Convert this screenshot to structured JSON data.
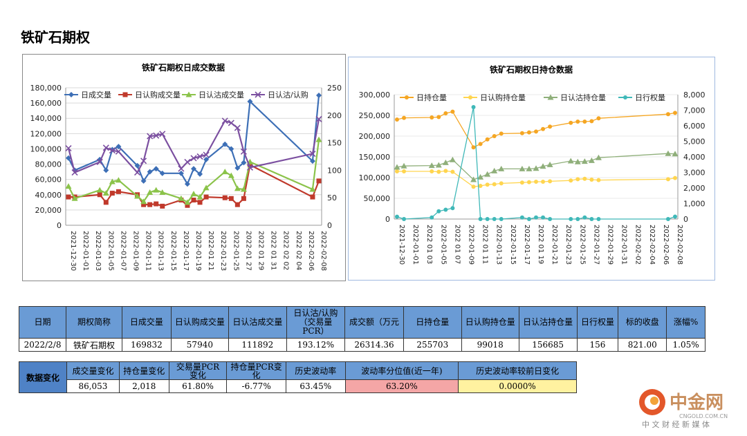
{
  "page": {
    "title": "铁矿石期权"
  },
  "chart_data": [
    {
      "type": "line",
      "title": "铁矿石期权日成交数据",
      "x": [
        "2021-12-30",
        "2022-01-01",
        "2022-01-03",
        "2022-01-05",
        "2022-01-07",
        "2022-01-09",
        "2022-01-11",
        "2022-01-13",
        "2022-01-15",
        "2022-01-17",
        "2022-01-19",
        "2022-01-21",
        "2022-01-23",
        "2022-01-25",
        "2022-01-27",
        "2022-01-29",
        "2022-01-31",
        "2022-02-02",
        "2022-02-04",
        "2022-02-06",
        "2022-02-08"
      ],
      "x_ticks_display": [
        "2021-12-30",
        "2022-01-01",
        "2022-01-03",
        "2022-01-05",
        "2022-01-07",
        "2022-01-09",
        "2022-01-11",
        "2022-01-13",
        "2022-01-15",
        "2022-01-17",
        "2022-01-19",
        "2022-01 21",
        "2022-01-23",
        "2022-01-25",
        "2022-01 27",
        "2022 01 29",
        "2022 01 31",
        "2022 02 02",
        "2022 02 04",
        "2022-02-06",
        "2022-02-08"
      ],
      "ylim_left": [
        0,
        180000
      ],
      "yticks_left": [
        "0",
        "20,000",
        "40,000",
        "60,000",
        "80,000",
        "100,000",
        "120,000",
        "140,000",
        "160,000",
        "180,000"
      ],
      "ylim_right": [
        0,
        250
      ],
      "yticks_right": [
        "0",
        "50",
        "100",
        "150",
        "200",
        "250"
      ],
      "series": [
        {
          "name": "日成交量",
          "axis": "left",
          "color": "#3d6fb6",
          "marker": "diamond",
          "points": [
            [
              "2021-12-30",
              88000
            ],
            [
              "2021-12-31",
              72000
            ],
            [
              "2022-01-04",
              86000
            ],
            [
              "2022-01-05",
              72000
            ],
            [
              "2022-01-06",
              99000
            ],
            [
              "2022-01-07",
              103000
            ],
            [
              "2022-01-10",
              78000
            ],
            [
              "2022-01-11",
              58000
            ],
            [
              "2022-01-12",
              70000
            ],
            [
              "2022-01-13",
              74000
            ],
            [
              "2022-01-14",
              68000
            ],
            [
              "2022-01-17",
              68000
            ],
            [
              "2022-01-18",
              54000
            ],
            [
              "2022-01-19",
              74000
            ],
            [
              "2022-01-20",
              67000
            ],
            [
              "2022-01-21",
              86000
            ],
            [
              "2022-01-24",
              106000
            ],
            [
              "2022-01-25",
              100000
            ],
            [
              "2022-01-26",
              75000
            ],
            [
              "2022-01-27",
              82000
            ],
            [
              "2022-01-28",
              162000
            ],
            [
              "2022-02-07",
              84000
            ],
            [
              "2022-02-08",
              170000
            ]
          ]
        },
        {
          "name": "日认购成交量",
          "axis": "left",
          "color": "#c0392b",
          "marker": "square",
          "points": [
            [
              "2021-12-30",
              37000
            ],
            [
              "2021-12-31",
              37000
            ],
            [
              "2022-01-04",
              40000
            ],
            [
              "2022-01-05",
              30000
            ],
            [
              "2022-01-06",
              42000
            ],
            [
              "2022-01-07",
              44000
            ],
            [
              "2022-01-10",
              40000
            ],
            [
              "2022-01-11",
              27000
            ],
            [
              "2022-01-12",
              27000
            ],
            [
              "2022-01-13",
              28000
            ],
            [
              "2022-01-14",
              25000
            ],
            [
              "2022-01-17",
              33000
            ],
            [
              "2022-01-18",
              26000
            ],
            [
              "2022-01-19",
              33000
            ],
            [
              "2022-01-20",
              30000
            ],
            [
              "2022-01-21",
              37000
            ],
            [
              "2022-01-24",
              36000
            ],
            [
              "2022-01-25",
              35000
            ],
            [
              "2022-01-26",
              27000
            ],
            [
              "2022-01-27",
              35000
            ],
            [
              "2022-01-28",
              79000
            ],
            [
              "2022-02-07",
              37000
            ],
            [
              "2022-02-08",
              58000
            ]
          ]
        },
        {
          "name": "日认沽成交量",
          "axis": "left",
          "color": "#8bc34a",
          "marker": "triangle",
          "points": [
            [
              "2021-12-30",
              51000
            ],
            [
              "2021-12-31",
              35000
            ],
            [
              "2022-01-04",
              46000
            ],
            [
              "2022-01-05",
              42000
            ],
            [
              "2022-01-06",
              57000
            ],
            [
              "2022-01-07",
              59000
            ],
            [
              "2022-01-10",
              38000
            ],
            [
              "2022-01-11",
              31000
            ],
            [
              "2022-01-12",
              43000
            ],
            [
              "2022-01-13",
              46000
            ],
            [
              "2022-01-14",
              43000
            ],
            [
              "2022-01-17",
              35000
            ],
            [
              "2022-01-18",
              30000
            ],
            [
              "2022-01-19",
              41000
            ],
            [
              "2022-01-20",
              37000
            ],
            [
              "2022-01-21",
              49000
            ],
            [
              "2022-01-24",
              70000
            ],
            [
              "2022-01-25",
              65000
            ],
            [
              "2022-01-26",
              48000
            ],
            [
              "2022-01-27",
              47000
            ],
            [
              "2022-01-28",
              83000
            ],
            [
              "2022-02-07",
              47000
            ],
            [
              "2022-02-08",
              112000
            ]
          ]
        },
        {
          "name": "日认沽/认购",
          "axis": "right",
          "color": "#7b4fa0",
          "marker": "x",
          "points": [
            [
              "2021-12-30",
              140
            ],
            [
              "2021-12-31",
              96
            ],
            [
              "2022-01-04",
              115
            ],
            [
              "2022-01-05",
              141
            ],
            [
              "2022-01-06",
              136
            ],
            [
              "2022-01-07",
              134
            ],
            [
              "2022-01-10",
              96
            ],
            [
              "2022-01-11",
              117
            ],
            [
              "2022-01-12",
              162
            ],
            [
              "2022-01-13",
              163
            ],
            [
              "2022-01-14",
              166
            ],
            [
              "2022-01-17",
              103
            ],
            [
              "2022-01-18",
              115
            ],
            [
              "2022-01-19",
              122
            ],
            [
              "2022-01-20",
              125
            ],
            [
              "2022-01-21",
              128
            ],
            [
              "2022-01-24",
              190
            ],
            [
              "2022-01-25",
              186
            ],
            [
              "2022-01-26",
              177
            ],
            [
              "2022-01-27",
              134
            ],
            [
              "2022-01-28",
              105
            ],
            [
              "2022-02-07",
              130
            ],
            [
              "2022-02-08",
              193
            ]
          ]
        }
      ]
    },
    {
      "type": "line",
      "title": "铁矿石期权日持仓数据",
      "x": [
        "2021-12-30",
        "2022-01-01",
        "2022-01-03",
        "2022-01-05",
        "2022-01-07",
        "2022-01-09",
        "2022-01-11",
        "2022-01-13",
        "2022-01-15",
        "2022-01-17",
        "2022-01-19",
        "2022-01-21",
        "2022-01-23",
        "2022-01-25",
        "2022-01-27",
        "2022-01-29",
        "2022-01-31",
        "2022-02-02",
        "2022-02-04",
        "2022-02-06",
        "2022-02-08"
      ],
      "x_ticks_display": [
        "2021-12-30",
        "2022-01-01",
        "2022 01 03",
        "2022-01-05",
        "2022 01 07",
        "2022-01-09",
        "2022 01 11",
        "2022-01-13",
        "2022-01-15",
        "2022-01-17",
        "2022 01 19",
        "2022-01-21",
        "2022-01-23",
        "2022-01-25",
        "2022-01-27",
        "2022-01-29",
        "2022-01-31",
        "2022-02-02",
        "2022-02-04",
        "2022-02-06",
        "2022-02-08"
      ],
      "ylim_left": [
        0,
        300000
      ],
      "yticks_left": [
        "0",
        "50,000",
        "100,000",
        "150,000",
        "200,000",
        "250,000",
        "300,000"
      ],
      "ylim_right": [
        0,
        8000
      ],
      "yticks_right": [
        "0",
        "1,000",
        "2,000",
        "3,000",
        "4,000",
        "5,000",
        "6,000",
        "7,000",
        "8,000"
      ],
      "series": [
        {
          "name": "日持仓量",
          "axis": "left",
          "color": "#f5a623",
          "marker": "circle",
          "points": [
            [
              "2021-12-30",
              240000
            ],
            [
              "2021-12-31",
              244000
            ],
            [
              "2022-01-04",
              245000
            ],
            [
              "2022-01-05",
              246000
            ],
            [
              "2022-01-06",
              255000
            ],
            [
              "2022-01-07",
              259000
            ],
            [
              "2022-01-10",
              173000
            ],
            [
              "2022-01-11",
              181000
            ],
            [
              "2022-01-12",
              192000
            ],
            [
              "2022-01-13",
              200000
            ],
            [
              "2022-01-14",
              206000
            ],
            [
              "2022-01-17",
              207000
            ],
            [
              "2022-01-18",
              209000
            ],
            [
              "2022-01-19",
              211000
            ],
            [
              "2022-01-20",
              217000
            ],
            [
              "2022-01-21",
              223000
            ],
            [
              "2022-01-24",
              232000
            ],
            [
              "2022-01-25",
              235000
            ],
            [
              "2022-01-26",
              235000
            ],
            [
              "2022-01-27",
              236000
            ],
            [
              "2022-01-28",
              243000
            ],
            [
              "2022-02-07",
              253000
            ],
            [
              "2022-02-08",
              256000
            ]
          ]
        },
        {
          "name": "日认购持仓量",
          "axis": "left",
          "color": "#ffd54f",
          "marker": "circle",
          "points": [
            [
              "2021-12-30",
              115000
            ],
            [
              "2021-12-31",
              115000
            ],
            [
              "2022-01-04",
              115000
            ],
            [
              "2022-01-05",
              114000
            ],
            [
              "2022-01-06",
              116000
            ],
            [
              "2022-01-07",
              114000
            ],
            [
              "2022-01-10",
              78000
            ],
            [
              "2022-01-11",
              80000
            ],
            [
              "2022-01-12",
              83000
            ],
            [
              "2022-01-13",
              84000
            ],
            [
              "2022-01-14",
              86000
            ],
            [
              "2022-01-17",
              88000
            ],
            [
              "2022-01-18",
              89000
            ],
            [
              "2022-01-19",
              90000
            ],
            [
              "2022-01-20",
              90000
            ],
            [
              "2022-01-21",
              91000
            ],
            [
              "2022-01-24",
              93000
            ],
            [
              "2022-01-25",
              96000
            ],
            [
              "2022-01-26",
              97000
            ],
            [
              "2022-01-27",
              95000
            ],
            [
              "2022-01-28",
              94000
            ],
            [
              "2022-02-07",
              96000
            ],
            [
              "2022-02-08",
              99000
            ]
          ]
        },
        {
          "name": "日认沽持仓量",
          "axis": "left",
          "color": "#8faf7a",
          "marker": "triangle",
          "points": [
            [
              "2021-12-30",
              125000
            ],
            [
              "2021-12-31",
              128000
            ],
            [
              "2022-01-04",
              129000
            ],
            [
              "2022-01-05",
              130000
            ],
            [
              "2022-01-06",
              136000
            ],
            [
              "2022-01-07",
              143000
            ],
            [
              "2022-01-10",
              95000
            ],
            [
              "2022-01-11",
              101000
            ],
            [
              "2022-01-12",
              108000
            ],
            [
              "2022-01-13",
              116000
            ],
            [
              "2022-01-14",
              121000
            ],
            [
              "2022-01-17",
              121000
            ],
            [
              "2022-01-18",
              121000
            ],
            [
              "2022-01-19",
              122000
            ],
            [
              "2022-01-20",
              127000
            ],
            [
              "2022-01-21",
              131000
            ],
            [
              "2022-01-24",
              140000
            ],
            [
              "2022-01-25",
              138000
            ],
            [
              "2022-01-26",
              139000
            ],
            [
              "2022-01-27",
              141000
            ],
            [
              "2022-01-28",
              148000
            ],
            [
              "2022-02-07",
              158000
            ],
            [
              "2022-02-08",
              157000
            ]
          ]
        },
        {
          "name": "日行权量",
          "axis": "right",
          "color": "#3fb8b8",
          "marker": "circle",
          "points": [
            [
              "2021-12-30",
              150
            ],
            [
              "2021-12-31",
              0
            ],
            [
              "2022-01-04",
              100
            ],
            [
              "2022-01-05",
              500
            ],
            [
              "2022-01-06",
              600
            ],
            [
              "2022-01-07",
              700
            ],
            [
              "2022-01-10",
              7200
            ],
            [
              "2022-01-11",
              0
            ],
            [
              "2022-01-12",
              0
            ],
            [
              "2022-01-13",
              0
            ],
            [
              "2022-01-14",
              0
            ],
            [
              "2022-01-17",
              100
            ],
            [
              "2022-01-18",
              0
            ],
            [
              "2022-01-19",
              100
            ],
            [
              "2022-01-20",
              100
            ],
            [
              "2022-01-21",
              0
            ],
            [
              "2022-01-24",
              0
            ],
            [
              "2022-01-25",
              0
            ],
            [
              "2022-01-26",
              100
            ],
            [
              "2022-01-27",
              0
            ],
            [
              "2022-01-28",
              0
            ],
            [
              "2022-02-07",
              0
            ],
            [
              "2022-02-08",
              156
            ]
          ]
        }
      ]
    }
  ],
  "table1": {
    "headers": [
      "日期",
      "期权简称",
      "日成交量",
      "日认购成交量",
      "日认沽成交量",
      "日认沽/认购\n（交易量\nPCR）",
      "成交额（万元",
      "日持仓量",
      "日认购持仓量",
      "日认沽持仓量",
      "日行权量",
      "标的收盘",
      "涨幅%"
    ],
    "row": [
      "2022/2/8",
      "铁矿石期权",
      "169832",
      "57940",
      "111892",
      "193.12%",
      "26314.36",
      "255703",
      "99018",
      "156685",
      "156",
      "821.00",
      "1.05%"
    ]
  },
  "table2": {
    "label": "数据变化",
    "headers": [
      "成交量变化",
      "持仓量变化",
      "交易量PCR\n变化",
      "持仓量PCR变\n化",
      "历史波动率",
      "波动率分位值(近一年)",
      "历史波动率较前日变化"
    ],
    "row": [
      "86,053",
      "2,018",
      "61.80%",
      "-6.77%",
      "63.45%",
      "63.20%",
      "0.0000%"
    ],
    "highlight_colors": {
      "pct": "#f4a6a6",
      "chg": "#fff2a0"
    }
  },
  "watermark": {
    "brand": "中金网",
    "url": "CNGOLD.COM.CN",
    "tagline": "中 文 财 经 新 媒 体"
  }
}
